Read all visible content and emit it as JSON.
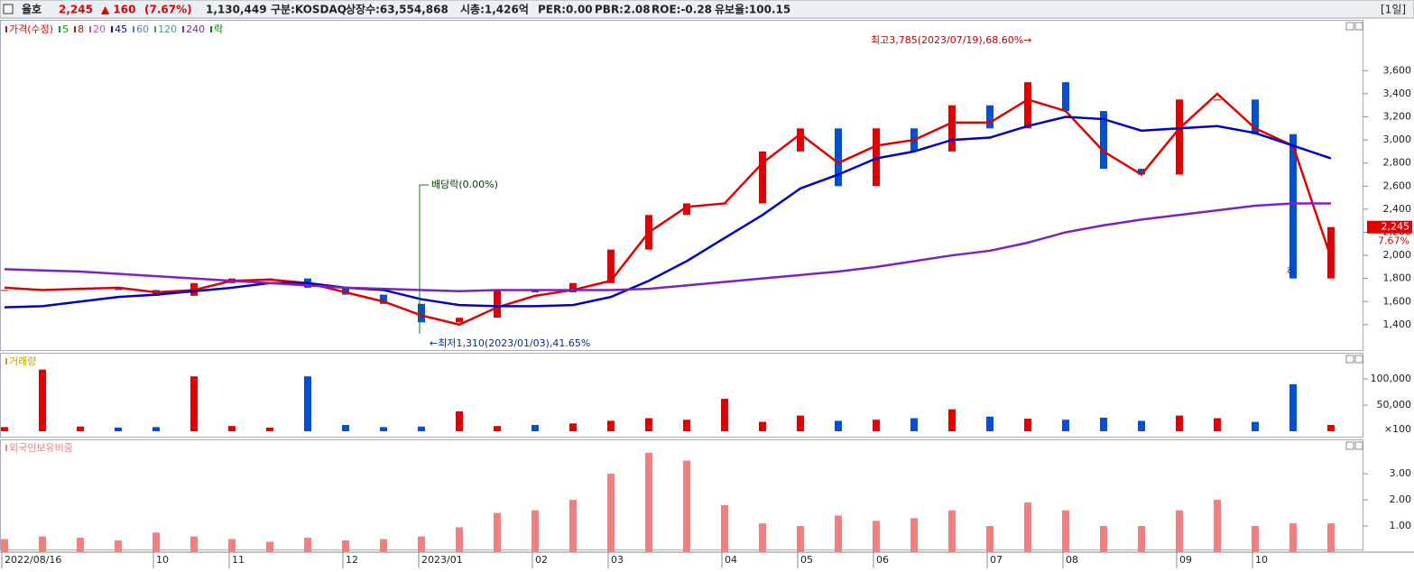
{
  "header": {
    "name": "율호",
    "price": "2,245",
    "change": "▲ 160",
    "change_pct": "(7.67%)",
    "volume": "1,130,449",
    "market": "구분:KOSDAQ",
    "shares": "상장수:63,554,868",
    "cap": "시총:1,426억",
    "per": "PER:0.00",
    "pbr": "PBR:2.08",
    "roe": "ROE:-0.28",
    "reserve": "유보율:100.15",
    "period": "[1일]"
  },
  "chart_data": [
    {
      "type": "candlestick",
      "x": [
        "2022/08/16",
        null,
        null,
        null,
        "10",
        null,
        "11",
        null,
        null,
        "12",
        null,
        "2023/01",
        null,
        null,
        "02",
        null,
        "03",
        null,
        null,
        "04",
        null,
        "05",
        null,
        "06",
        null,
        null,
        "07",
        null,
        "08",
        null,
        null,
        "09",
        null,
        "10",
        null,
        null
      ],
      "up_color": "#e00000",
      "down_color": "#0050d0",
      "series": [
        {
          "name": "가격(수정)",
          "color": "#e00000",
          "values": [
            1700,
            1700,
            1720,
            1700,
            1650,
            1760,
            1800,
            1800,
            1720,
            1660,
            1580,
            1420,
            1460,
            1700,
            1680,
            1760,
            2050,
            2350,
            2450,
            2450,
            2900,
            3100,
            2600,
            3100,
            2900,
            3300,
            3100,
            3500,
            3250,
            2750,
            2700,
            3350,
            3350,
            3050,
            1800,
            2245
          ]
        },
        {
          "name": "5",
          "color": "#00a000"
        },
        {
          "name": "8",
          "color": "#e00000",
          "values": [
            1720,
            1700,
            1710,
            1720,
            1680,
            1700,
            1780,
            1790,
            1760,
            1680,
            1600,
            1480,
            1400,
            1550,
            1650,
            1700,
            1780,
            2200,
            2420,
            2450,
            2800,
            3050,
            2800,
            2950,
            3000,
            3150,
            3150,
            3350,
            3250,
            2900,
            2700,
            3100,
            3400,
            3100,
            2950,
            1980
          ]
        },
        {
          "name": "20",
          "color": "#d040d0"
        },
        {
          "name": "45",
          "color": "#0000c0",
          "values": [
            1550,
            1560,
            1600,
            1640,
            1660,
            1690,
            1720,
            1760,
            1760,
            1720,
            1700,
            1620,
            1570,
            1560,
            1560,
            1570,
            1640,
            1780,
            1950,
            2150,
            2350,
            2580,
            2700,
            2840,
            2900,
            3000,
            3020,
            3120,
            3200,
            3180,
            3080,
            3100,
            3120,
            3060,
            2950,
            2840
          ]
        },
        {
          "name": "60",
          "color": "#5080c0"
        },
        {
          "name": "120",
          "color": "#40a080"
        },
        {
          "name": "240",
          "color": "#8020c0",
          "values": [
            1880,
            1870,
            1860,
            1840,
            1820,
            1800,
            1780,
            1760,
            1740,
            1720,
            1710,
            1700,
            1690,
            1700,
            1700,
            1700,
            1700,
            1710,
            1740,
            1770,
            1800,
            1830,
            1860,
            1900,
            1950,
            2000,
            2040,
            2110,
            2200,
            2260,
            2310,
            2350,
            2390,
            2430,
            2450,
            2450
          ]
        },
        {
          "name": "락",
          "color": "#008000"
        }
      ],
      "ylim": [
        1180,
        4040
      ],
      "yticks": [
        {
          "value": 1400,
          "label": "1,400"
        },
        {
          "value": 1600,
          "label": "1,600"
        },
        {
          "value": 1800,
          "label": "1,800"
        },
        {
          "value": 2000,
          "label": "2,000"
        },
        {
          "value": 2200,
          "label": "2,200"
        },
        {
          "value": 2400,
          "label": "2,400"
        },
        {
          "value": 2600,
          "label": "2,600"
        },
        {
          "value": 2800,
          "label": "2,800"
        },
        {
          "value": 3000,
          "label": "3,000"
        },
        {
          "value": 3200,
          "label": "3,200"
        },
        {
          "value": 3400,
          "label": "3,400"
        },
        {
          "value": 3600,
          "label": "3,600"
        }
      ],
      "change_tag": "7.67%",
      "annotations": {
        "high": "최고3,785(2023/07/19),68.60%→",
        "low": "←최저1,310(2023/01/03),41.65%",
        "dividend": "배당락(0.00%)",
        "down": "하"
      }
    },
    {
      "type": "bar",
      "title": "거래량",
      "color": "#c8a000",
      "values": [
        8000,
        118000,
        9000,
        7000,
        8000,
        105000,
        10000,
        7000,
        105000,
        12000,
        8000,
        9000,
        38000,
        10000,
        12000,
        15000,
        20000,
        25000,
        22000,
        62000,
        18000,
        30000,
        20000,
        22000,
        25000,
        42000,
        28000,
        24000,
        22000,
        26000,
        20000,
        30000,
        25000,
        18000,
        90000,
        12000
      ],
      "ylim": [
        0,
        145000
      ],
      "yticks": [
        {
          "value": 50000,
          "label": "50,000"
        },
        {
          "value": 100000,
          "label": "100,000"
        }
      ],
      "unit": "×100"
    },
    {
      "type": "bar",
      "title": "외국인보유비중",
      "color": "#f08080",
      "values": [
        0.5,
        0.6,
        0.55,
        0.45,
        0.75,
        0.6,
        0.5,
        0.4,
        0.55,
        0.45,
        0.5,
        0.6,
        0.95,
        1.5,
        1.6,
        2.0,
        3.0,
        3.8,
        3.5,
        1.8,
        1.1,
        1.0,
        1.4,
        1.2,
        1.3,
        1.6,
        1.0,
        1.9,
        1.6,
        1.0,
        1.0,
        1.6,
        2.0,
        1.0,
        1.1,
        1.1
      ],
      "ylim": [
        0,
        4.28
      ],
      "yticks": [
        {
          "value": 1,
          "label": "1.00"
        },
        {
          "value": 2,
          "label": "2.00"
        },
        {
          "value": 3,
          "label": "3.00"
        }
      ]
    }
  ]
}
